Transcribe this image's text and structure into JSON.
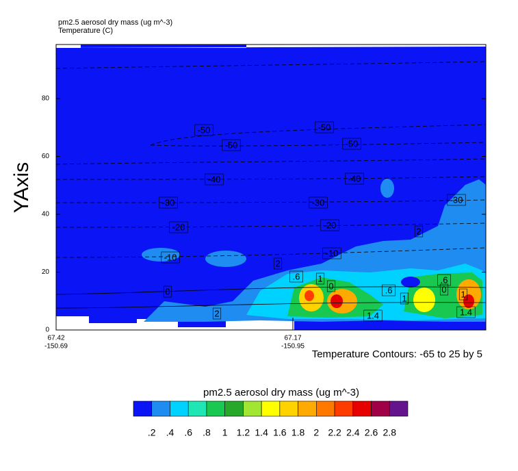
{
  "chart_data": {
    "type": "contour",
    "title_lines": [
      "pm2.5 aerosol dry mass   (ug m^-3)",
      "Temperature   (C)"
    ],
    "y_label": "YAxis",
    "ylim": [
      0,
      98.7
    ],
    "yticks": [
      0,
      20,
      40,
      60,
      80
    ],
    "x_tick_labels": [
      [
        "67.42",
        "-150.69"
      ],
      [
        "67.17",
        "-150.95"
      ]
    ],
    "contour_note": "Temperature Contours: -65 to 25 by 5",
    "contour_labels": [
      -50,
      -50,
      -50,
      -50,
      -40,
      -40,
      -30,
      -30,
      -30,
      -20,
      -20,
      -10,
      -10,
      0,
      0,
      0,
      2,
      2,
      2,
      {
        "value": 0.6,
        "label": ".6"
      },
      {
        "value": 0.6,
        "label": ".6"
      },
      {
        "value": 0.6,
        "label": ".6"
      },
      1,
      1,
      1,
      1.4,
      1.4
    ],
    "colorbar": {
      "title": "pm2.5 aerosol dry mass  (ug m^-3)",
      "colors": [
        "#0a14f5",
        "#1e8cf0",
        "#00d2ff",
        "#20e6b4",
        "#18c850",
        "#28a828",
        "#a0e632",
        "#ffff00",
        "#ffd200",
        "#ffaa00",
        "#ff7800",
        "#ff3c00",
        "#e60000",
        "#a00046",
        "#64148c"
      ],
      "ticks": [
        {
          "value": 0.2,
          "label": ".2"
        },
        {
          "value": 0.4,
          "label": ".4"
        },
        {
          "value": 0.6,
          "label": ".6"
        },
        {
          "value": 0.8,
          "label": ".8"
        },
        1,
        1.2,
        1.4,
        1.6,
        1.8,
        2,
        2.2,
        2.4,
        2.6,
        2.8
      ]
    }
  }
}
